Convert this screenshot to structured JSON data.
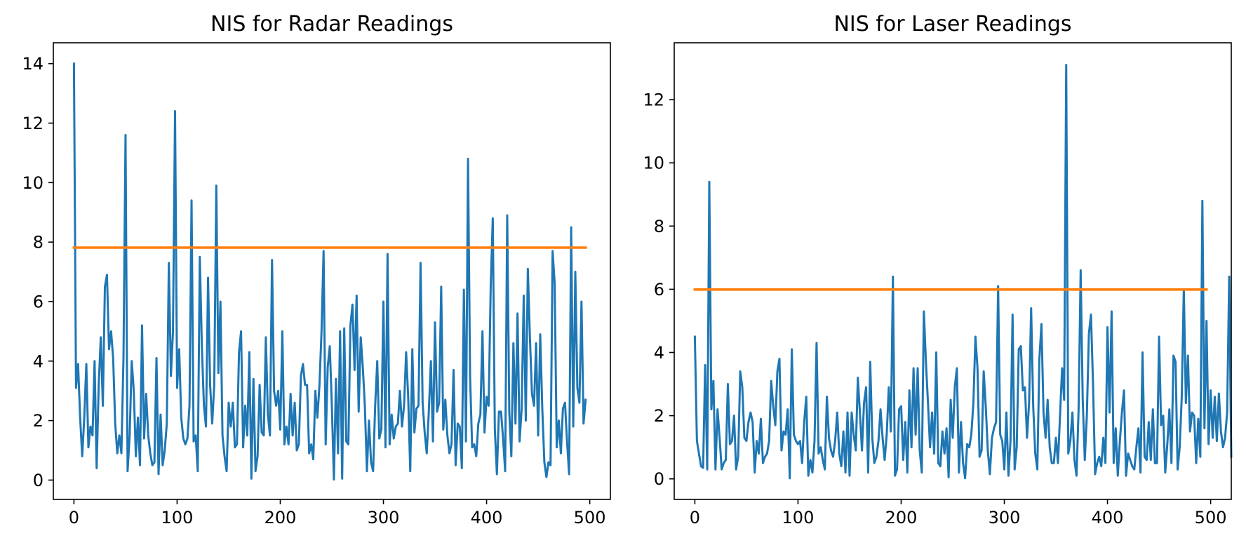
{
  "colors": {
    "nis": "#1f77b4",
    "threshold": "#ff7f0e",
    "axis": "#000000"
  },
  "chart_data": [
    {
      "type": "line",
      "title": "NIS for Radar Readings",
      "xlabel": "",
      "ylabel": "",
      "xlim": [
        -20,
        520
      ],
      "ylim": [
        -0.65,
        14.7
      ],
      "x_ticks": [
        0,
        100,
        200,
        300,
        400,
        500
      ],
      "x_tick_labels": [
        "0",
        "100",
        "200",
        "300",
        "400",
        "500"
      ],
      "y_ticks": [
        0,
        2,
        4,
        6,
        8,
        10,
        12,
        14
      ],
      "y_tick_labels": [
        "0",
        "2",
        "4",
        "6",
        "8",
        "10",
        "12",
        "14"
      ],
      "grid": false,
      "series": [
        {
          "kind": "nis",
          "x_start": 0,
          "x_step": 2,
          "values": [
            14.0,
            3.1,
            3.9,
            2.1,
            0.8,
            2.1,
            3.9,
            1.1,
            1.8,
            1.5,
            4.0,
            0.4,
            3.2,
            4.8,
            2.5,
            6.5,
            6.9,
            4.4,
            5.0,
            4.1,
            1.9,
            0.9,
            1.5,
            0.9,
            4.1,
            11.6,
            0.3,
            1.5,
            4.0,
            3.0,
            0.8,
            2.1,
            0.5,
            5.2,
            1.4,
            2.9,
            1.5,
            0.9,
            0.5,
            0.6,
            4.1,
            0.2,
            2.2,
            0.5,
            1.0,
            1.9,
            7.3,
            3.5,
            5.0,
            12.4,
            3.1,
            4.4,
            2.1,
            1.4,
            1.2,
            1.4,
            2.5,
            9.4,
            1.3,
            1.5,
            0.3,
            7.5,
            4.5,
            2.5,
            1.8,
            6.8,
            3.2,
            1.9,
            3.2,
            9.9,
            3.6,
            6.0,
            1.5,
            0.8,
            0.3,
            2.6,
            1.8,
            2.6,
            1.1,
            1.2,
            4.3,
            5.0,
            1.1,
            2.5,
            1.5,
            4.3,
            0.05,
            3.4,
            0.3,
            0.8,
            3.2,
            1.6,
            1.5,
            4.8,
            2.2,
            1.5,
            7.4,
            3.0,
            2.5,
            3.0,
            1.7,
            5.0,
            1.2,
            1.8,
            1.2,
            2.9,
            1.5,
            2.6,
            1.0,
            1.2,
            3.5,
            3.9,
            3.2,
            3.2,
            0.9,
            1.2,
            0.7,
            3.0,
            2.1,
            3.2,
            5.0,
            7.7,
            1.2,
            3.8,
            4.5,
            2.5,
            0.02,
            3.4,
            0.9,
            5.0,
            0.05,
            5.1,
            1.3,
            1.2,
            5.2,
            5.9,
            3.7,
            6.2,
            2.3,
            4.8,
            3.8,
            2.5,
            0.3,
            2.0,
            0.6,
            0.3,
            2.5,
            4.0,
            1.4,
            1.7,
            6.0,
            1.1,
            7.6,
            1.2,
            2.2,
            1.4,
            1.8,
            1.9,
            3.0,
            1.8,
            2.5,
            4.3,
            2.8,
            0.3,
            4.4,
            1.6,
            2.4,
            2.5,
            7.3,
            2.6,
            1.6,
            0.9,
            2.3,
            4.0,
            1.3,
            5.3,
            2.3,
            2.6,
            6.5,
            1.7,
            2.7,
            1.5,
            0.9,
            1.2,
            3.7,
            0.5,
            1.9,
            1.8,
            0.4,
            6.4,
            1.3,
            10.8,
            3.5,
            1.1,
            1.2,
            0.8,
            1.9,
            2.2,
            5.0,
            1.6,
            2.8,
            2.5,
            6.5,
            8.8,
            1.7,
            0.2,
            2.3,
            2.3,
            1.4,
            0.3,
            8.9,
            2.3,
            0.8,
            4.6,
            1.9,
            5.6,
            1.3,
            2.4,
            6.2,
            2.0,
            7.1,
            4.8,
            2.9,
            2.5,
            4.6,
            1.5,
            4.9,
            2.4,
            0.6,
            0.1,
            0.6,
            0.5,
            7.7,
            6.6,
            1.1,
            2.0,
            0.9,
            2.4,
            2.6,
            1.3,
            0.2,
            8.5,
            1.8,
            7.0,
            3.1,
            2.6,
            6.0,
            1.9,
            2.7
          ]
        },
        {
          "kind": "threshold",
          "x": [
            0,
            496
          ],
          "values": [
            7.815,
            7.815
          ]
        }
      ]
    },
    {
      "type": "line",
      "title": "NIS for Laser Readings",
      "xlabel": "",
      "ylabel": "",
      "xlim": [
        -20,
        520
      ],
      "ylim": [
        -0.65,
        13.8
      ],
      "x_ticks": [
        0,
        100,
        200,
        300,
        400,
        500
      ],
      "x_tick_labels": [
        "0",
        "100",
        "200",
        "300",
        "400",
        "500"
      ],
      "y_ticks": [
        0,
        2,
        4,
        6,
        8,
        10,
        12
      ],
      "y_tick_labels": [
        "0",
        "2",
        "4",
        "6",
        "8",
        "10",
        "12"
      ],
      "grid": false,
      "series": [
        {
          "kind": "nis",
          "x_start": 0,
          "x_step": 2,
          "values": [
            4.5,
            1.2,
            0.8,
            0.4,
            0.35,
            3.6,
            0.3,
            9.4,
            2.2,
            3.1,
            0.3,
            2.2,
            1.3,
            0.3,
            0.5,
            0.6,
            3.0,
            1.1,
            1.2,
            2.0,
            0.3,
            0.7,
            3.4,
            2.9,
            1.3,
            1.2,
            1.8,
            2.1,
            1.8,
            0.2,
            1.2,
            0.8,
            1.9,
            0.5,
            0.7,
            0.8,
            1.2,
            3.1,
            2.3,
            1.7,
            3.4,
            3.8,
            0.9,
            1.5,
            1.4,
            2.2,
            0.02,
            4.1,
            1.4,
            1.2,
            1.1,
            1.2,
            0.5,
            1.8,
            2.6,
            0.1,
            0.6,
            0.2,
            1.2,
            4.3,
            0.8,
            1.0,
            0.6,
            0.3,
            2.6,
            1.3,
            0.9,
            0.7,
            1.2,
            2.1,
            0.8,
            0.4,
            1.5,
            0.2,
            2.1,
            0.1,
            2.1,
            1.4,
            0.9,
            3.2,
            2.1,
            0.9,
            2.4,
            2.9,
            0.2,
            3.7,
            1.3,
            0.5,
            0.7,
            1.2,
            2.2,
            1.3,
            0.6,
            1.4,
            2.9,
            1.5,
            6.4,
            0.1,
            0.3,
            2.2,
            2.3,
            0.6,
            1.8,
            0.2,
            2.8,
            1.0,
            3.5,
            1.4,
            3.5,
            0.9,
            0.2,
            5.3,
            3.7,
            2.4,
            1.0,
            2.1,
            0.8,
            4.0,
            0.5,
            0.4,
            1.5,
            0.8,
            1.6,
            0.05,
            2.5,
            1.3,
            2.9,
            3.5,
            0.2,
            1.8,
            0.5,
            0.02,
            1.1,
            1.0,
            1.4,
            2.4,
            4.5,
            3.5,
            0.7,
            0.9,
            3.4,
            2.3,
            0.9,
            0.15,
            1.3,
            1.6,
            1.8,
            6.1,
            1.4,
            1.2,
            0.3,
            2.1,
            0.1,
            1.2,
            5.2,
            0.3,
            1.0,
            4.1,
            4.2,
            2.8,
            2.9,
            1.3,
            2.4,
            5.4,
            2.3,
            0.8,
            0.3,
            3.8,
            4.9,
            2.1,
            1.3,
            2.5,
            1.0,
            0.5,
            0.5,
            1.3,
            0.5,
            2.0,
            3.5,
            2.5,
            13.1,
            0.8,
            1.2,
            2.1,
            0.6,
            0.1,
            2.2,
            6.6,
            2.5,
            0.6,
            2.0,
            4.6,
            5.2,
            3.0,
            0.15,
            0.5,
            0.7,
            0.4,
            1.3,
            0.5,
            4.8,
            2.1,
            5.3,
            0.5,
            1.6,
            0.1,
            1.2,
            2.1,
            2.8,
            0.1,
            0.8,
            0.6,
            0.4,
            0.3,
            1.0,
            1.6,
            0.2,
            4.0,
            0.7,
            0.6,
            1.8,
            0.6,
            2.2,
            0.5,
            0.5,
            4.5,
            1.7,
            2.0,
            0.2,
            1.1,
            2.2,
            0.5,
            3.9,
            3.7,
            0.3,
            1.0,
            2.6,
            6.0,
            2.4,
            3.9,
            1.5,
            2.1,
            2.0,
            0.5,
            1.9,
            0.7,
            8.8,
            1.6,
            5.0,
            1.1,
            2.8,
            1.3,
            2.6,
            1.2,
            2.7,
            1.5,
            1.0,
            1.3,
            2.1,
            6.4,
            0.7
          ]
        },
        {
          "kind": "threshold",
          "x": [
            0,
            496
          ],
          "values": [
            5.991,
            5.991
          ]
        }
      ]
    }
  ]
}
